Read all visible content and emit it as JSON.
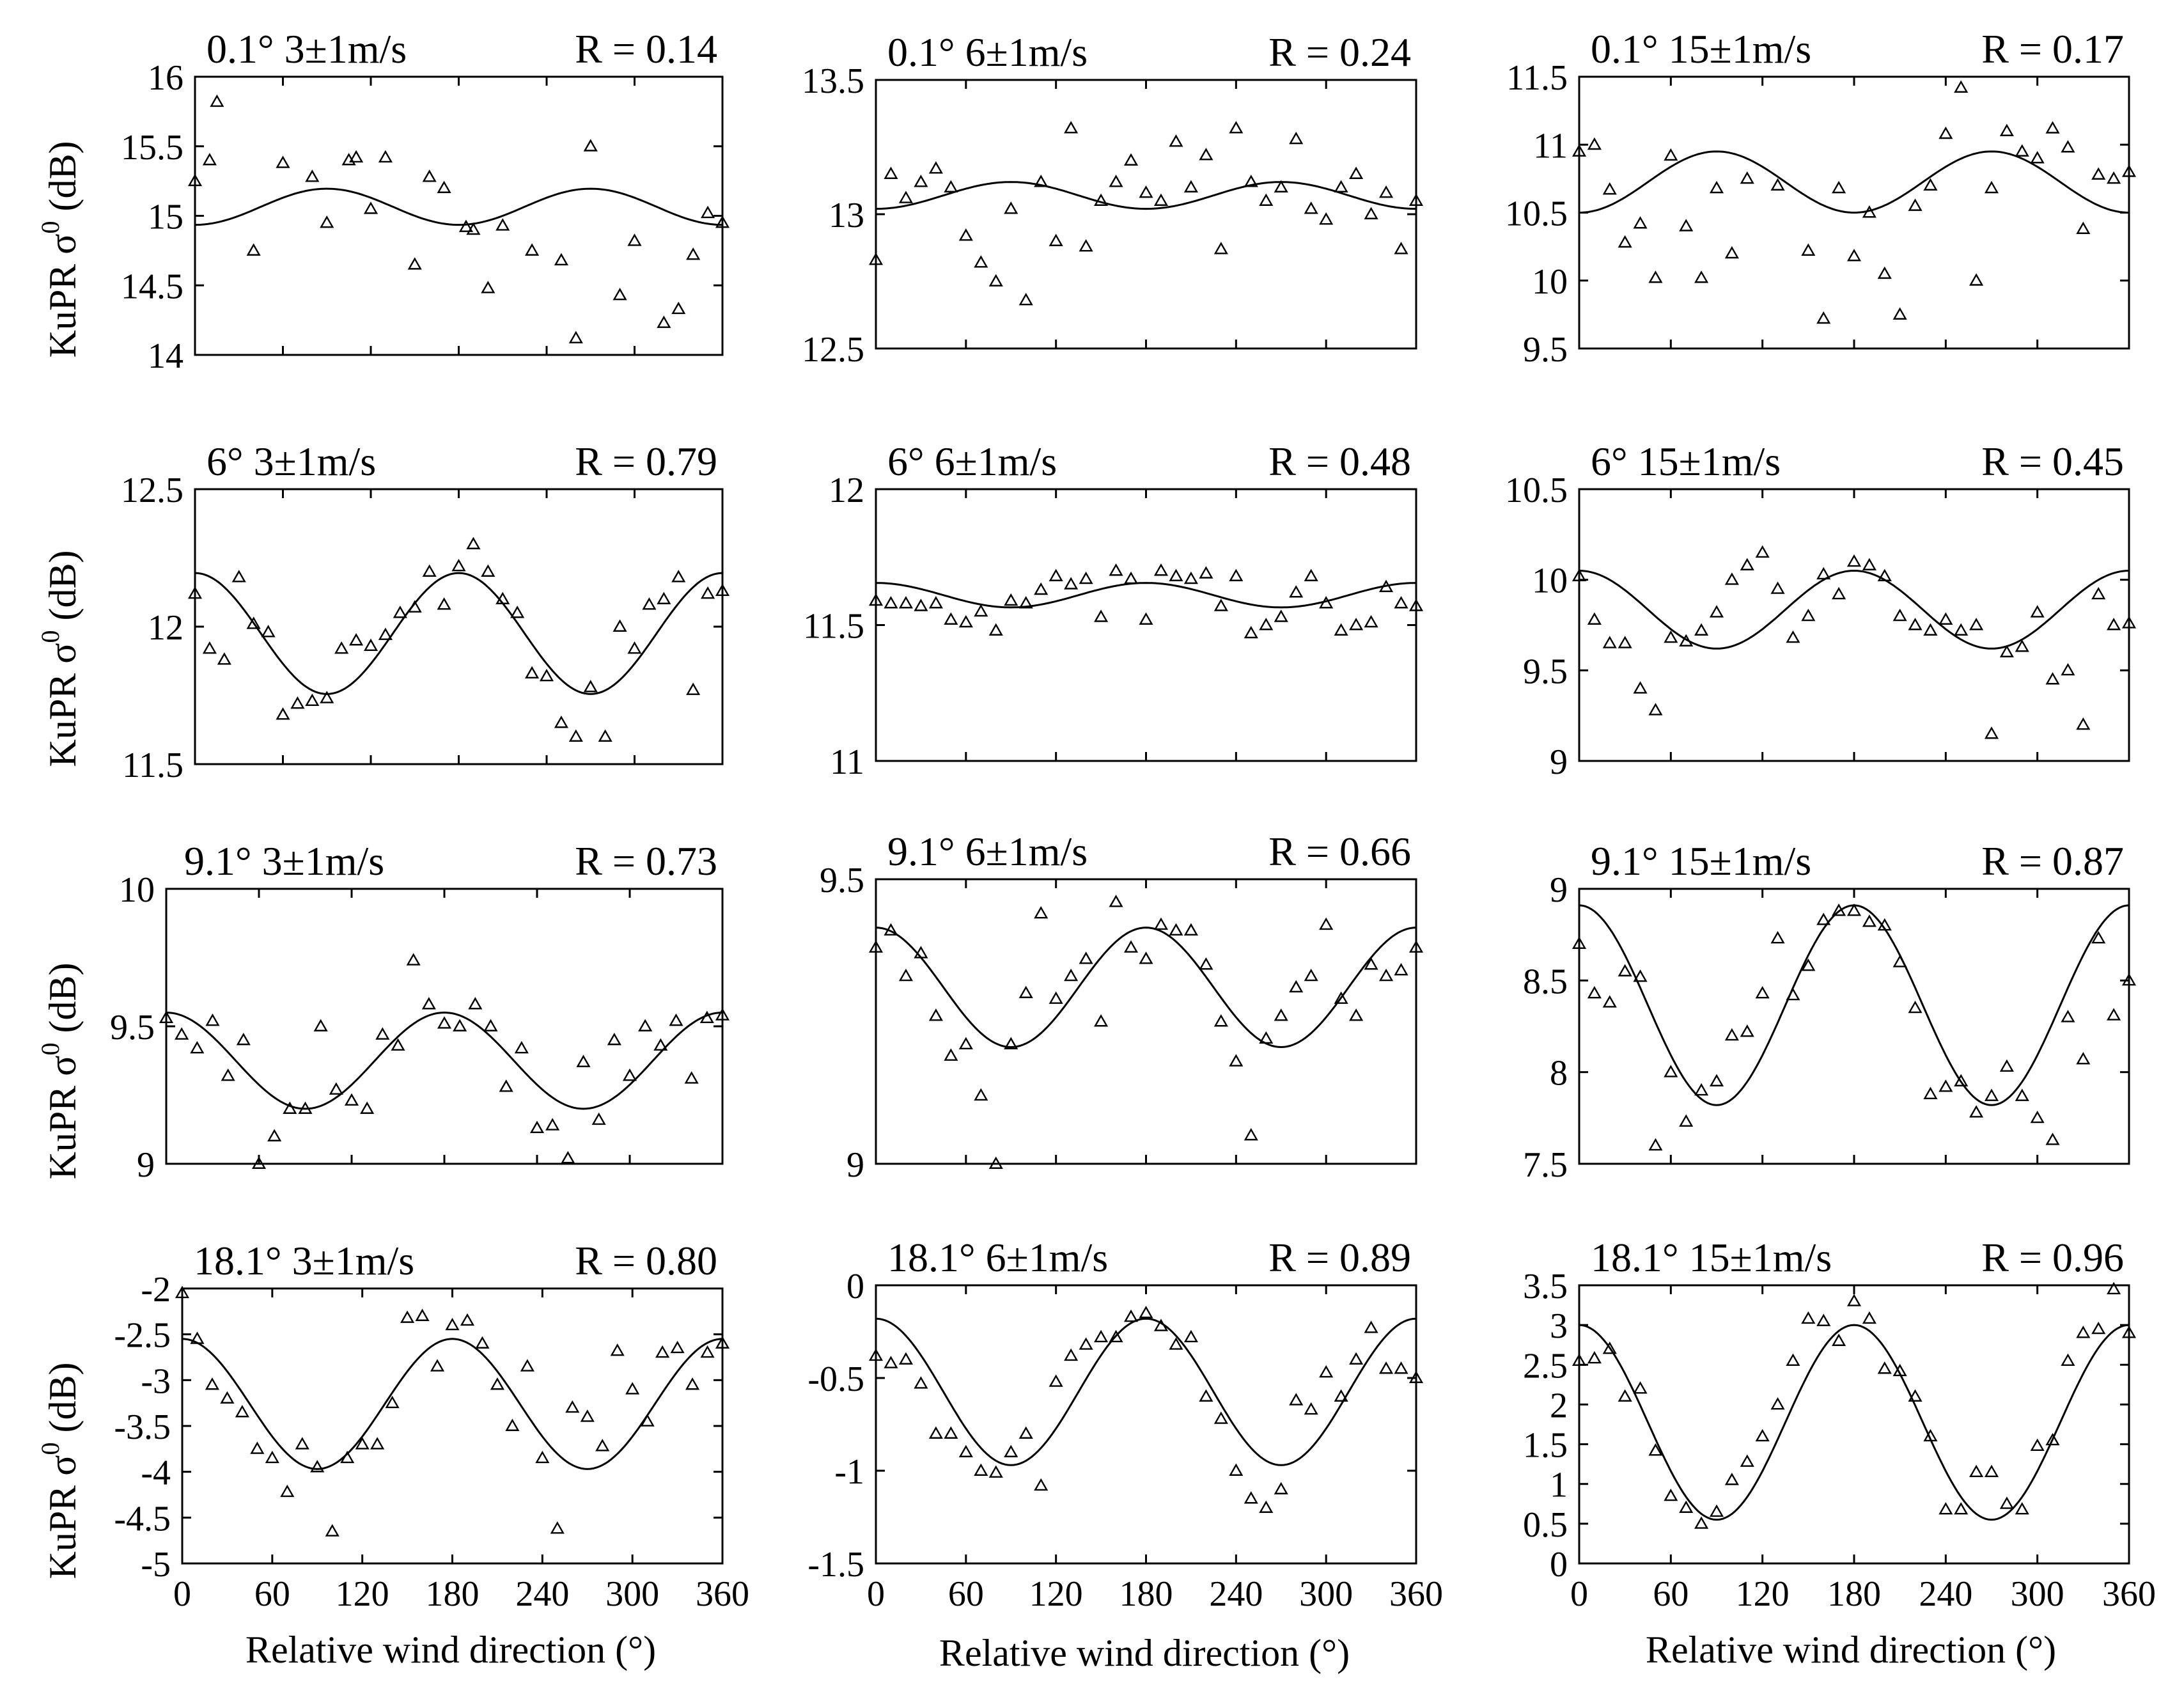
{
  "figure": {
    "xlabel": "Relative wind direction (°)",
    "ylabel_text": "KuPR σ",
    "ylabel_sup": "0",
    "ylabel_unit": " (dB)"
  },
  "chart_data": [
    {
      "type": "scatter",
      "title_left": "0.1° 3±1m/s",
      "title_right": "R = 0.14",
      "ylim": [
        14,
        16
      ],
      "yticks": [
        "14",
        "14.5",
        "15",
        "15.5",
        "16"
      ],
      "xlim": [
        0,
        360
      ],
      "xticks": [
        "0",
        "60",
        "120",
        "180",
        "240",
        "300",
        "360"
      ],
      "fit": {
        "mean": 15.065,
        "a1": 0,
        "a2": -0.13
      },
      "x": [
        0,
        10,
        40,
        60,
        80,
        90,
        110,
        120,
        130,
        150,
        160,
        170,
        190,
        200,
        210,
        230,
        250,
        260,
        270,
        290,
        300,
        320,
        330,
        340,
        350,
        360,
        105,
        185,
        15
      ],
      "y": [
        15.25,
        15.4,
        14.75,
        15.38,
        15.28,
        14.95,
        15.42,
        15.05,
        15.42,
        14.65,
        15.28,
        15.2,
        14.9,
        14.48,
        14.93,
        14.75,
        14.68,
        14.12,
        15.5,
        14.43,
        14.82,
        14.23,
        14.33,
        14.72,
        15.02,
        14.95,
        15.4,
        14.92,
        15.82
      ]
    },
    {
      "type": "scatter",
      "title_left": "0.1° 6±1m/s",
      "title_right": "R = 0.24",
      "ylim": [
        12.5,
        13.5
      ],
      "yticks": [
        "12.5",
        "13",
        "13.5"
      ],
      "xlim": [
        0,
        360
      ],
      "xticks": [
        "0",
        "60",
        "120",
        "180",
        "240",
        "300",
        "360"
      ],
      "fit": {
        "mean": 13.07,
        "a1": 0,
        "a2": -0.05
      },
      "x": [
        0,
        10,
        20,
        30,
        40,
        50,
        60,
        70,
        80,
        90,
        100,
        110,
        120,
        130,
        140,
        150,
        160,
        170,
        180,
        190,
        200,
        210,
        220,
        230,
        240,
        250,
        260,
        270,
        280,
        290,
        300,
        310,
        320,
        330,
        340,
        350,
        360
      ],
      "y": [
        12.83,
        13.15,
        13.06,
        13.12,
        13.17,
        13.1,
        12.92,
        12.82,
        12.75,
        13.02,
        12.68,
        13.12,
        12.9,
        13.32,
        12.88,
        13.05,
        13.12,
        13.2,
        13.08,
        13.05,
        13.27,
        13.1,
        13.22,
        12.87,
        13.32,
        13.12,
        13.05,
        13.1,
        13.28,
        13.02,
        12.98,
        13.1,
        13.15,
        13,
        13.08,
        12.87,
        13.05
      ]
    },
    {
      "type": "scatter",
      "title_left": "0.1° 15±1m/s",
      "title_right": "R = 0.17",
      "ylim": [
        9.5,
        11.5
      ],
      "yticks": [
        "9.5",
        "10",
        "10.5",
        "11",
        "11.5"
      ],
      "xlim": [
        0,
        360
      ],
      "xticks": [
        "0",
        "60",
        "120",
        "180",
        "240",
        "300",
        "360"
      ],
      "fit": {
        "mean": 10.725,
        "a1": 0,
        "a2": -0.225
      },
      "x": [
        0,
        10,
        20,
        30,
        40,
        50,
        60,
        70,
        80,
        90,
        100,
        110,
        130,
        150,
        160,
        170,
        180,
        190,
        200,
        210,
        220,
        230,
        240,
        250,
        260,
        270,
        280,
        290,
        300,
        310,
        320,
        330,
        340,
        350,
        360
      ],
      "y": [
        10.95,
        11,
        10.67,
        10.28,
        10.42,
        10.02,
        10.92,
        10.4,
        10.02,
        10.68,
        10.2,
        10.75,
        10.7,
        10.22,
        9.72,
        10.68,
        10.18,
        10.5,
        10.05,
        9.75,
        10.55,
        10.7,
        11.08,
        11.42,
        10,
        10.68,
        11.1,
        10.95,
        10.9,
        11.12,
        10.98,
        10.38,
        10.78,
        10.75,
        10.8
      ]
    },
    {
      "type": "scatter",
      "title_left": "6° 3±1m/s",
      "title_right": "R = 0.79",
      "ylim": [
        11.5,
        12.5
      ],
      "yticks": [
        "11.5",
        "12",
        "12.5"
      ],
      "xlim": [
        0,
        360
      ],
      "xticks": [
        "0",
        "60",
        "120",
        "180",
        "240",
        "300",
        "360"
      ],
      "fit": {
        "mean": 11.975,
        "a1": 0,
        "a2": 0.22
      },
      "x": [
        0,
        10,
        20,
        30,
        40,
        50,
        60,
        70,
        80,
        90,
        100,
        110,
        120,
        130,
        140,
        150,
        160,
        170,
        180,
        190,
        200,
        210,
        220,
        230,
        240,
        250,
        260,
        270,
        280,
        290,
        300,
        310,
        320,
        330,
        340,
        350,
        360
      ],
      "y": [
        12.12,
        11.92,
        11.88,
        12.18,
        12.01,
        11.98,
        11.68,
        11.72,
        11.73,
        11.74,
        11.92,
        11.95,
        11.93,
        11.97,
        12.05,
        12.07,
        12.2,
        12.08,
        12.22,
        12.3,
        12.2,
        12.1,
        12.05,
        11.83,
        11.82,
        11.65,
        11.6,
        11.78,
        11.6,
        12,
        11.92,
        12.08,
        12.1,
        12.18,
        11.77,
        12.12,
        12.13
      ]
    },
    {
      "type": "scatter",
      "title_left": "6° 6±1m/s",
      "title_right": "R = 0.48",
      "ylim": [
        11,
        12
      ],
      "yticks": [
        "11",
        "11.5",
        "12"
      ],
      "xlim": [
        0,
        360
      ],
      "xticks": [
        "0",
        "60",
        "120",
        "180",
        "240",
        "300",
        "360"
      ],
      "fit": {
        "mean": 11.61,
        "a1": 0,
        "a2": 0.045
      },
      "x": [
        0,
        10,
        20,
        30,
        40,
        50,
        60,
        70,
        80,
        90,
        100,
        110,
        120,
        130,
        140,
        150,
        160,
        170,
        180,
        190,
        200,
        210,
        220,
        230,
        240,
        250,
        260,
        270,
        280,
        290,
        300,
        310,
        320,
        330,
        340,
        350,
        360
      ],
      "y": [
        11.59,
        11.58,
        11.58,
        11.57,
        11.58,
        11.52,
        11.51,
        11.55,
        11.48,
        11.59,
        11.58,
        11.63,
        11.68,
        11.65,
        11.67,
        11.53,
        11.7,
        11.67,
        11.52,
        11.7,
        11.68,
        11.67,
        11.69,
        11.57,
        11.68,
        11.47,
        11.5,
        11.53,
        11.62,
        11.68,
        11.58,
        11.48,
        11.5,
        11.51,
        11.64,
        11.58,
        11.57
      ]
    },
    {
      "type": "scatter",
      "title_left": "6° 15±1m/s",
      "title_right": "R = 0.45",
      "ylim": [
        9,
        10.5
      ],
      "yticks": [
        "9",
        "9.5",
        "10",
        "10.5"
      ],
      "xlim": [
        0,
        360
      ],
      "xticks": [
        "0",
        "60",
        "120",
        "180",
        "240",
        "300",
        "360"
      ],
      "fit": {
        "mean": 9.835,
        "a1": 0,
        "a2": 0.215
      },
      "x": [
        0,
        10,
        20,
        30,
        40,
        50,
        60,
        70,
        80,
        90,
        100,
        110,
        120,
        130,
        140,
        150,
        160,
        170,
        180,
        190,
        200,
        210,
        220,
        230,
        240,
        250,
        260,
        270,
        280,
        290,
        300,
        310,
        320,
        330,
        340,
        350,
        360
      ],
      "y": [
        10.02,
        9.78,
        9.65,
        9.65,
        9.4,
        9.28,
        9.68,
        9.66,
        9.72,
        9.82,
        10,
        10.08,
        10.15,
        9.95,
        9.68,
        9.8,
        10.03,
        9.92,
        10.1,
        10.08,
        10.02,
        9.8,
        9.75,
        9.72,
        9.78,
        9.72,
        9.75,
        9.15,
        9.6,
        9.63,
        9.82,
        9.45,
        9.5,
        9.2,
        9.92,
        9.75,
        9.76
      ]
    },
    {
      "type": "scatter",
      "title_left": "9.1° 3±1m/s",
      "title_right": "R = 0.73",
      "ylim": [
        9,
        10
      ],
      "yticks": [
        "9",
        "9.5",
        "10"
      ],
      "xlim": [
        0,
        360
      ],
      "xticks": [
        "0",
        "60",
        "120",
        "180",
        "240",
        "300",
        "360"
      ],
      "fit": {
        "mean": 9.375,
        "a1": 0,
        "a2": 0.175
      },
      "x": [
        0,
        10,
        20,
        30,
        40,
        50,
        60,
        70,
        80,
        90,
        100,
        110,
        120,
        130,
        140,
        150,
        160,
        170,
        180,
        190,
        200,
        210,
        220,
        230,
        240,
        250,
        260,
        270,
        280,
        290,
        300,
        310,
        320,
        330,
        340,
        350,
        360
      ],
      "y": [
        9.53,
        9.47,
        9.42,
        9.52,
        9.32,
        9.45,
        9,
        9.1,
        9.2,
        9.2,
        9.5,
        9.27,
        9.23,
        9.2,
        9.47,
        9.43,
        9.74,
        9.58,
        9.51,
        9.5,
        9.58,
        9.5,
        9.28,
        9.42,
        9.13,
        9.14,
        9.02,
        9.37,
        9.16,
        9.45,
        9.32,
        9.5,
        9.43,
        9.52,
        9.31,
        9.53,
        9.54
      ]
    },
    {
      "type": "scatter",
      "title_left": "9.1° 6±1m/s",
      "title_right": "R = 0.66",
      "ylim": [
        9,
        9.5
      ],
      "yticks": [
        "9",
        "9.5"
      ],
      "xlim": [
        0,
        360
      ],
      "xticks": [
        "0",
        "60",
        "120",
        "180",
        "240",
        "300",
        "360"
      ],
      "fit": {
        "mean": 9.31,
        "a1": 0,
        "a2": 0.105
      },
      "x": [
        0,
        10,
        20,
        30,
        40,
        50,
        60,
        70,
        80,
        90,
        100,
        110,
        120,
        130,
        140,
        150,
        160,
        170,
        180,
        190,
        200,
        210,
        220,
        230,
        240,
        250,
        260,
        270,
        280,
        290,
        300,
        310,
        320,
        330,
        340,
        350,
        360
      ],
      "y": [
        9.38,
        9.41,
        9.33,
        9.37,
        9.26,
        9.19,
        9.21,
        9.12,
        9,
        9.21,
        9.3,
        9.44,
        9.29,
        9.33,
        9.36,
        9.25,
        9.46,
        9.38,
        9.36,
        9.42,
        9.41,
        9.41,
        9.35,
        9.25,
        9.18,
        9.05,
        9.22,
        9.26,
        9.31,
        9.33,
        9.42,
        9.29,
        9.26,
        9.35,
        9.33,
        9.34,
        9.38
      ]
    },
    {
      "type": "scatter",
      "title_left": "9.1° 15±1m/s",
      "title_right": "R = 0.87",
      "ylim": [
        7.5,
        9
      ],
      "yticks": [
        "7.5",
        "8",
        "8.5",
        "9"
      ],
      "xlim": [
        0,
        360
      ],
      "xticks": [
        "0",
        "60",
        "120",
        "180",
        "240",
        "300",
        "360"
      ],
      "fit": {
        "mean": 8.365,
        "a1": 0,
        "a2": 0.545
      },
      "x": [
        0,
        10,
        20,
        30,
        40,
        50,
        60,
        70,
        80,
        90,
        100,
        110,
        120,
        130,
        140,
        150,
        160,
        170,
        180,
        190,
        200,
        210,
        220,
        230,
        240,
        250,
        260,
        270,
        280,
        290,
        300,
        310,
        320,
        330,
        340,
        350,
        360
      ],
      "y": [
        8.7,
        8.43,
        8.38,
        8.55,
        8.52,
        7.6,
        8,
        7.73,
        7.9,
        7.95,
        8.2,
        8.22,
        8.43,
        8.73,
        8.42,
        8.58,
        8.83,
        8.88,
        8.88,
        8.82,
        8.8,
        8.6,
        8.35,
        7.88,
        7.92,
        7.95,
        7.78,
        7.87,
        8.03,
        7.87,
        7.75,
        7.63,
        8.3,
        8.07,
        8.73,
        8.31,
        8.5
      ]
    },
    {
      "type": "scatter",
      "title_left": "18.1°  3±1m/s",
      "title_right": "R = 0.80",
      "ylim": [
        -5,
        -2
      ],
      "yticks": [
        "-5",
        "-4.5",
        "-4",
        "-3.5",
        "-3",
        "-2.5",
        "-2"
      ],
      "xlim": [
        0,
        360
      ],
      "xticks": [
        "0",
        "60",
        "120",
        "180",
        "240",
        "300",
        "360"
      ],
      "fit": {
        "mean": -3.26,
        "a1": 0,
        "a2": 0.71
      },
      "x": [
        0,
        10,
        20,
        30,
        40,
        50,
        60,
        70,
        80,
        90,
        100,
        110,
        120,
        130,
        140,
        150,
        160,
        170,
        180,
        190,
        200,
        210,
        220,
        230,
        240,
        250,
        260,
        270,
        280,
        290,
        300,
        310,
        320,
        330,
        340,
        350,
        360
      ],
      "y": [
        -2.05,
        -2.55,
        -3.05,
        -3.2,
        -3.35,
        -3.75,
        -3.85,
        -4.22,
        -3.7,
        -3.95,
        -4.65,
        -3.85,
        -3.7,
        -3.7,
        -3.25,
        -2.32,
        -2.3,
        -2.85,
        -2.4,
        -2.35,
        -2.6,
        -3.05,
        -3.5,
        -2.85,
        -3.85,
        -4.62,
        -3.3,
        -3.4,
        -3.72,
        -2.68,
        -3.1,
        -3.45,
        -2.7,
        -2.65,
        -3.05,
        -2.7,
        -2.6
      ]
    },
    {
      "type": "scatter",
      "title_left": "18.1° 6±1m/s",
      "title_right": "R = 0.89",
      "ylim": [
        -1.5,
        0
      ],
      "yticks": [
        "-1.5",
        "-1",
        "-0.5",
        "0"
      ],
      "xlim": [
        0,
        360
      ],
      "xticks": [
        "0",
        "60",
        "120",
        "180",
        "240",
        "300",
        "360"
      ],
      "fit": {
        "mean": -0.575,
        "a1": 0,
        "a2": 0.395
      },
      "x": [
        0,
        10,
        20,
        30,
        40,
        50,
        60,
        70,
        80,
        90,
        100,
        110,
        120,
        130,
        140,
        150,
        160,
        170,
        180,
        190,
        200,
        210,
        220,
        230,
        240,
        250,
        260,
        270,
        280,
        290,
        300,
        310,
        320,
        330,
        340,
        350,
        360
      ],
      "y": [
        -0.38,
        -0.42,
        -0.4,
        -0.53,
        -0.8,
        -0.8,
        -0.9,
        -1,
        -1.01,
        -0.9,
        -0.8,
        -1.08,
        -0.52,
        -0.38,
        -0.32,
        -0.28,
        -0.28,
        -0.17,
        -0.15,
        -0.22,
        -0.32,
        -0.28,
        -0.6,
        -0.72,
        -1,
        -1.15,
        -1.2,
        -1.1,
        -0.62,
        -0.67,
        -0.47,
        -0.6,
        -0.4,
        -0.23,
        -0.45,
        -0.45,
        -0.5
      ]
    },
    {
      "type": "scatter",
      "title_left": "18.1°  15±1m/s",
      "title_right": "R = 0.96",
      "ylim": [
        0,
        3.5
      ],
      "yticks": [
        "0",
        "0.5",
        "1",
        "1.5",
        "2",
        "2.5",
        "3",
        "3.5"
      ],
      "xlim": [
        0,
        360
      ],
      "xticks": [
        "0",
        "60",
        "120",
        "180",
        "240",
        "300",
        "360"
      ],
      "fit": {
        "mean": 1.775,
        "a1": 0,
        "a2": 1.225
      },
      "x": [
        0,
        10,
        20,
        30,
        40,
        50,
        60,
        70,
        80,
        90,
        100,
        110,
        120,
        130,
        140,
        150,
        160,
        170,
        180,
        190,
        200,
        210,
        220,
        230,
        240,
        250,
        260,
        270,
        280,
        290,
        300,
        310,
        320,
        330,
        340,
        350,
        360
      ],
      "y": [
        2.55,
        2.58,
        2.7,
        2.1,
        2.2,
        1.42,
        0.85,
        0.7,
        0.5,
        0.65,
        1.05,
        1.28,
        1.6,
        2,
        2.55,
        3.08,
        3.05,
        2.8,
        3.3,
        3.08,
        2.45,
        2.42,
        2.1,
        1.6,
        0.68,
        0.68,
        1.15,
        1.15,
        0.75,
        0.68,
        1.48,
        1.55,
        2.55,
        2.9,
        2.95,
        3.45,
        2.9
      ]
    }
  ]
}
